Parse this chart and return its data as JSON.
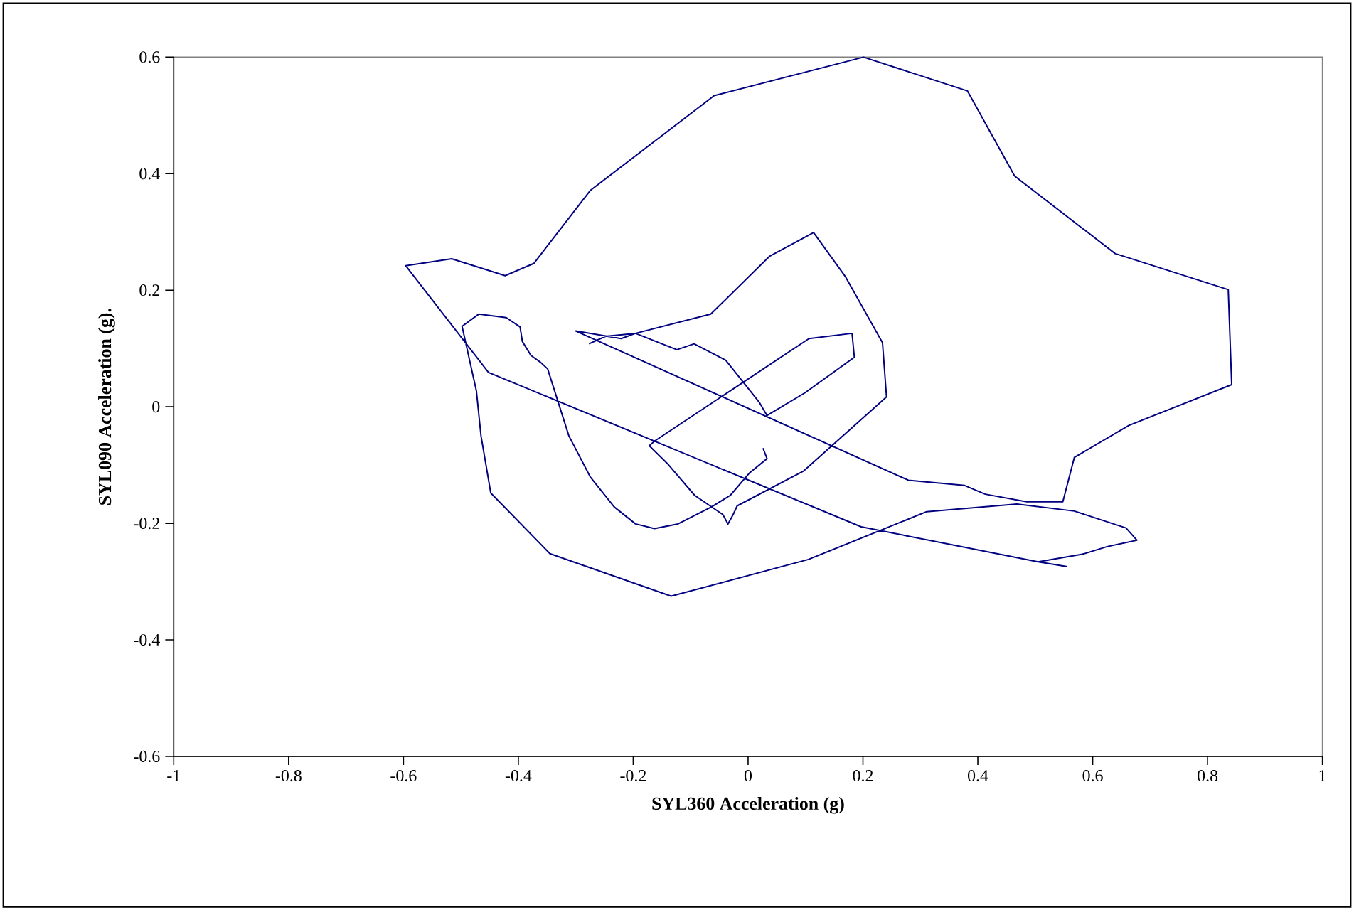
{
  "chart_data": {
    "type": "line",
    "xlabel": "SYL360 Acceleration (g)",
    "ylabel": "SYL090 Acceleration (g).",
    "xlim": [
      -1,
      1
    ],
    "ylim": [
      -0.6,
      0.6
    ],
    "xticks": [
      -1,
      -0.8,
      -0.6,
      -0.4,
      -0.2,
      0,
      0.2,
      0.4,
      0.6,
      0.8,
      1
    ],
    "yticks": [
      -0.6,
      -0.4,
      -0.2,
      0,
      0.2,
      0.4,
      0.6
    ],
    "grid": false,
    "marker": "none",
    "line_style": "solid",
    "series": [
      {
        "color": "#000080",
        "x": [
          0.026,
          0.033,
          0.002,
          -0.031,
          -0.064,
          -0.122,
          -0.163,
          -0.196,
          -0.233,
          -0.275,
          -0.312,
          -0.349,
          -0.361,
          -0.378,
          -0.393,
          -0.397,
          -0.421,
          -0.469,
          -0.498,
          -0.473,
          -0.465,
          -0.448,
          -0.345,
          -0.134,
          0.105,
          0.311,
          0.468,
          0.568,
          0.658,
          0.677,
          0.625,
          0.582,
          0.505,
          0.554,
          0.505,
          0.197,
          -0.452,
          -0.596,
          -0.516,
          -0.423,
          -0.373,
          -0.275,
          -0.059,
          0.201,
          0.382,
          0.464,
          0.639,
          0.836,
          0.842,
          0.663,
          0.568,
          0.548,
          0.485,
          0.413,
          0.377,
          0.279,
          -0.3,
          -0.221,
          -0.196,
          -0.15,
          -0.124,
          -0.094,
          -0.039,
          0.02,
          0.033,
          0.099,
          0.185,
          0.181,
          0.106,
          -0.163,
          -0.172,
          -0.139,
          -0.093,
          -0.044,
          -0.035,
          -0.026,
          -0.019,
          0.097,
          0.241,
          0.234,
          0.169,
          0.114,
          0.037,
          -0.065,
          -0.196,
          -0.248,
          -0.277
        ],
        "values": [
          -0.071,
          -0.089,
          -0.114,
          -0.152,
          -0.172,
          -0.201,
          -0.209,
          -0.201,
          -0.172,
          -0.12,
          -0.05,
          0.065,
          0.076,
          0.088,
          0.112,
          0.137,
          0.153,
          0.159,
          0.138,
          0.027,
          -0.05,
          -0.148,
          -0.252,
          -0.325,
          -0.262,
          -0.18,
          -0.167,
          -0.179,
          -0.208,
          -0.229,
          -0.24,
          -0.253,
          -0.266,
          -0.274,
          -0.266,
          -0.206,
          0.059,
          0.242,
          0.254,
          0.225,
          0.246,
          0.371,
          0.534,
          0.6,
          0.542,
          0.396,
          0.263,
          0.201,
          0.038,
          -0.032,
          -0.087,
          -0.163,
          -0.163,
          -0.15,
          -0.135,
          -0.126,
          0.13,
          0.117,
          0.126,
          0.108,
          0.098,
          0.108,
          0.08,
          0.007,
          -0.015,
          0.024,
          0.085,
          0.126,
          0.117,
          -0.059,
          -0.067,
          -0.099,
          -0.152,
          -0.185,
          -0.201,
          -0.185,
          -0.17,
          -0.11,
          0.017,
          0.11,
          0.224,
          0.299,
          0.258,
          0.159,
          0.126,
          0.121,
          0.108
        ]
      }
    ]
  }
}
